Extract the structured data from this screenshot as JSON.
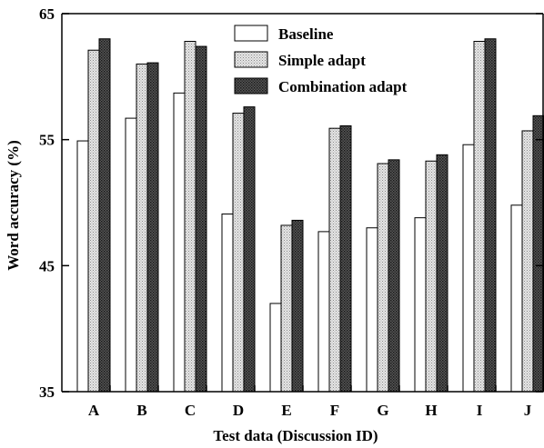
{
  "chart_data": {
    "type": "bar",
    "xlabel": "Test data (Discussion ID)",
    "ylabel": "Word accuracy (%)",
    "ylim": [
      35,
      65
    ],
    "yticks": [
      35,
      45,
      55,
      65
    ],
    "grid": false,
    "legend_position": "top-center",
    "categories": [
      "A",
      "B",
      "C",
      "D",
      "E",
      "F",
      "G",
      "H",
      "I",
      "J"
    ],
    "series": [
      {
        "name": "Baseline",
        "fill": "white",
        "values": [
          54.9,
          56.7,
          58.7,
          49.1,
          42.0,
          47.7,
          48.0,
          48.8,
          54.6,
          49.8
        ]
      },
      {
        "name": "Simple adapt",
        "fill": "light-dotted",
        "values": [
          62.1,
          61.0,
          62.8,
          57.1,
          48.2,
          55.9,
          53.1,
          53.3,
          62.8,
          55.7
        ]
      },
      {
        "name": "Combination adapt",
        "fill": "dark-hatched",
        "values": [
          63.0,
          61.1,
          62.4,
          57.6,
          48.6,
          56.1,
          53.4,
          53.8,
          63.0,
          56.9
        ]
      }
    ]
  },
  "colors": {
    "axis": "#000000",
    "bar_outline": "#000000",
    "baseline_fill": "#ffffff",
    "simple_fill": "#d9d9d9",
    "combination_fill": "#4a4a4a"
  }
}
